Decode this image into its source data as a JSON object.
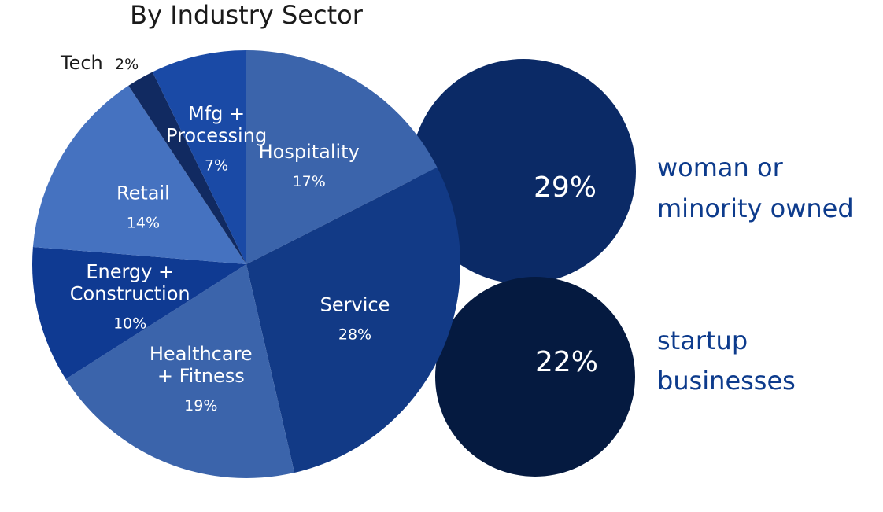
{
  "chart_data": [
    {
      "type": "pie",
      "title": "By Industry Sector",
      "slices": [
        {
          "label": [
            "Hospitality"
          ],
          "value": 17,
          "pct_text": "17%",
          "color": "#3b64ab"
        },
        {
          "label": [
            "Service"
          ],
          "value": 28,
          "pct_text": "28%",
          "color": "#123a86"
        },
        {
          "label": [
            "Healthcare",
            "+ Fitness"
          ],
          "value": 19,
          "pct_text": "19%",
          "color": "#3b64ab"
        },
        {
          "label": [
            "Energy +",
            "Construction"
          ],
          "value": 10,
          "pct_text": "10%",
          "color": "#0f3a92"
        },
        {
          "label": [
            "Retail"
          ],
          "value": 14,
          "pct_text": "14%",
          "color": "#4572c0"
        },
        {
          "label": [
            "Tech"
          ],
          "value": 2,
          "pct_text": "2%",
          "color": "#112a61"
        },
        {
          "label": [
            "Mfg +",
            "Processing"
          ],
          "value": 7,
          "pct_text": "7%",
          "color": "#1a4aa6"
        }
      ]
    },
    {
      "type": "stat-bubbles",
      "items": [
        {
          "value": 29,
          "pct_text": "29%",
          "label": [
            "woman or",
            "minority owned"
          ],
          "color": "#0b2a66"
        },
        {
          "value": 22,
          "pct_text": "22%",
          "label": [
            "startup",
            "businesses"
          ],
          "color": "#051a40"
        }
      ]
    }
  ],
  "colors": {
    "stat_text": "#0d3b8c",
    "title_text": "#1a1a1a"
  }
}
